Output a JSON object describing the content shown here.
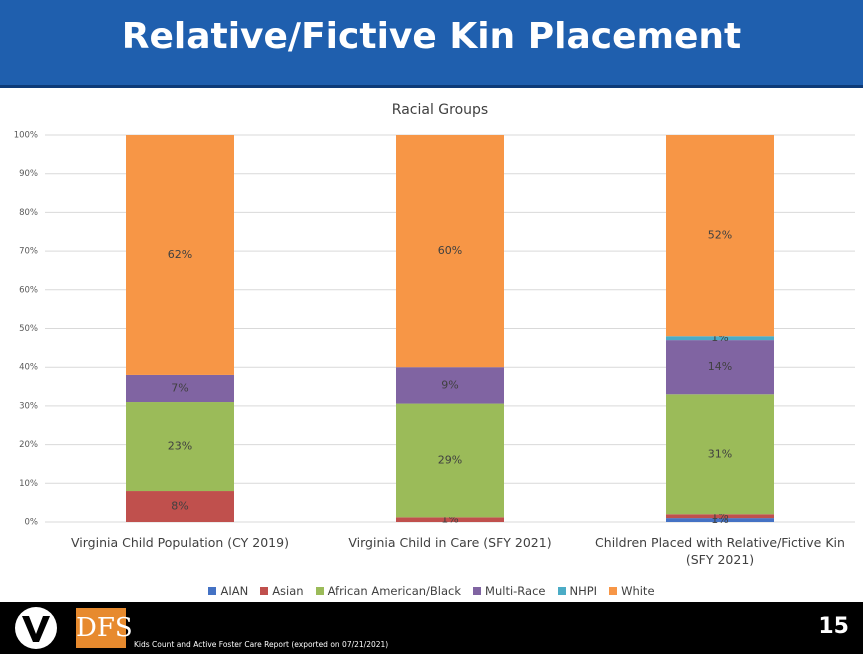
{
  "header": {
    "title": "Relative/Fictive Kin Placement"
  },
  "chart_data": {
    "type": "stacked_bar",
    "title": "Racial Groups",
    "categories": [
      "Virginia Child Population (CY 2019)",
      "Virginia Child in Care (SFY 2021)",
      "Children Placed with Relative/Fictive Kin (SFY 2021)"
    ],
    "series": [
      {
        "name": "AIAN",
        "color": "#4472c4",
        "values": [
          0,
          0,
          1
        ],
        "value_labels": [
          null,
          null,
          "1%"
        ]
      },
      {
        "name": "Asian",
        "color": "#c0504d",
        "values": [
          8,
          1.2,
          1
        ],
        "value_labels": [
          "8%",
          "1%",
          "1%"
        ]
      },
      {
        "name": "African American/Black",
        "color": "#9bbb59",
        "values": [
          23,
          29.4,
          31
        ],
        "value_labels": [
          "23%",
          "29%",
          "31%"
        ]
      },
      {
        "name": "Multi-Race",
        "color": "#8064a2",
        "values": [
          7,
          9.4,
          14
        ],
        "value_labels": [
          "7%",
          "9%",
          "14%"
        ]
      },
      {
        "name": "NHPI",
        "color": "#4bacc6",
        "values": [
          0,
          0,
          1
        ],
        "value_labels": [
          null,
          null,
          "1%"
        ]
      },
      {
        "name": "White",
        "color": "#f79646",
        "values": [
          62,
          60,
          52
        ],
        "value_labels": [
          "62%",
          "60%",
          "52%"
        ]
      }
    ],
    "ylim": [
      0,
      100
    ],
    "yticks": [
      {
        "value": 0,
        "label": "0%"
      },
      {
        "value": 10,
        "label": "10%"
      },
      {
        "value": 20,
        "label": "20%"
      },
      {
        "value": 30,
        "label": "30%"
      },
      {
        "value": 40,
        "label": "40%"
      },
      {
        "value": 50,
        "label": "50%"
      },
      {
        "value": 60,
        "label": "60%"
      },
      {
        "value": 70,
        "label": "70%"
      },
      {
        "value": 80,
        "label": "80%"
      },
      {
        "value": 90,
        "label": "90%"
      },
      {
        "value": 100,
        "label": "100%"
      }
    ],
    "grid": true,
    "legend": "bottom"
  },
  "footer": {
    "logo_text": "DFS",
    "source": "Kids Count and Active Foster Care Report (exported on 07/21/2021)",
    "page_number": "15"
  }
}
